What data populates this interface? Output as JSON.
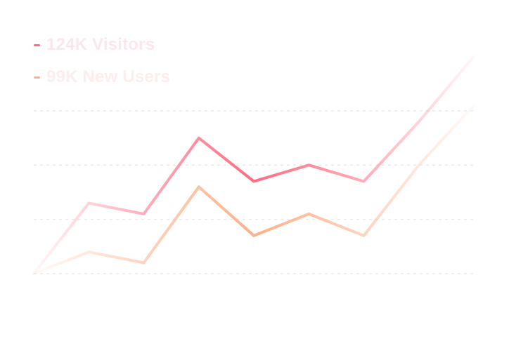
{
  "legend": [
    {
      "label": "124K Visitors",
      "color": "#ff6b81",
      "text_color": "#fce4ec"
    },
    {
      "label": "99K New Users",
      "color": "#ffb088",
      "text_color": "#fdecec"
    }
  ],
  "chart_data": {
    "type": "line",
    "x": [
      0,
      1,
      2,
      3,
      4,
      5,
      6,
      7,
      8
    ],
    "ylim": [
      0,
      30
    ],
    "y_gridlines": [
      0,
      10,
      20,
      30
    ],
    "grid": "horizontal dashed",
    "legend_position": "top-left",
    "series": [
      {
        "name": "124K Visitors",
        "color": "#ff6b81",
        "values": [
          0,
          13,
          11,
          25,
          17,
          20,
          17,
          28,
          40
        ]
      },
      {
        "name": "99K New Users",
        "color": "#ffb088",
        "values": [
          0,
          4,
          2,
          16,
          7,
          11,
          7,
          20,
          31
        ]
      }
    ]
  }
}
